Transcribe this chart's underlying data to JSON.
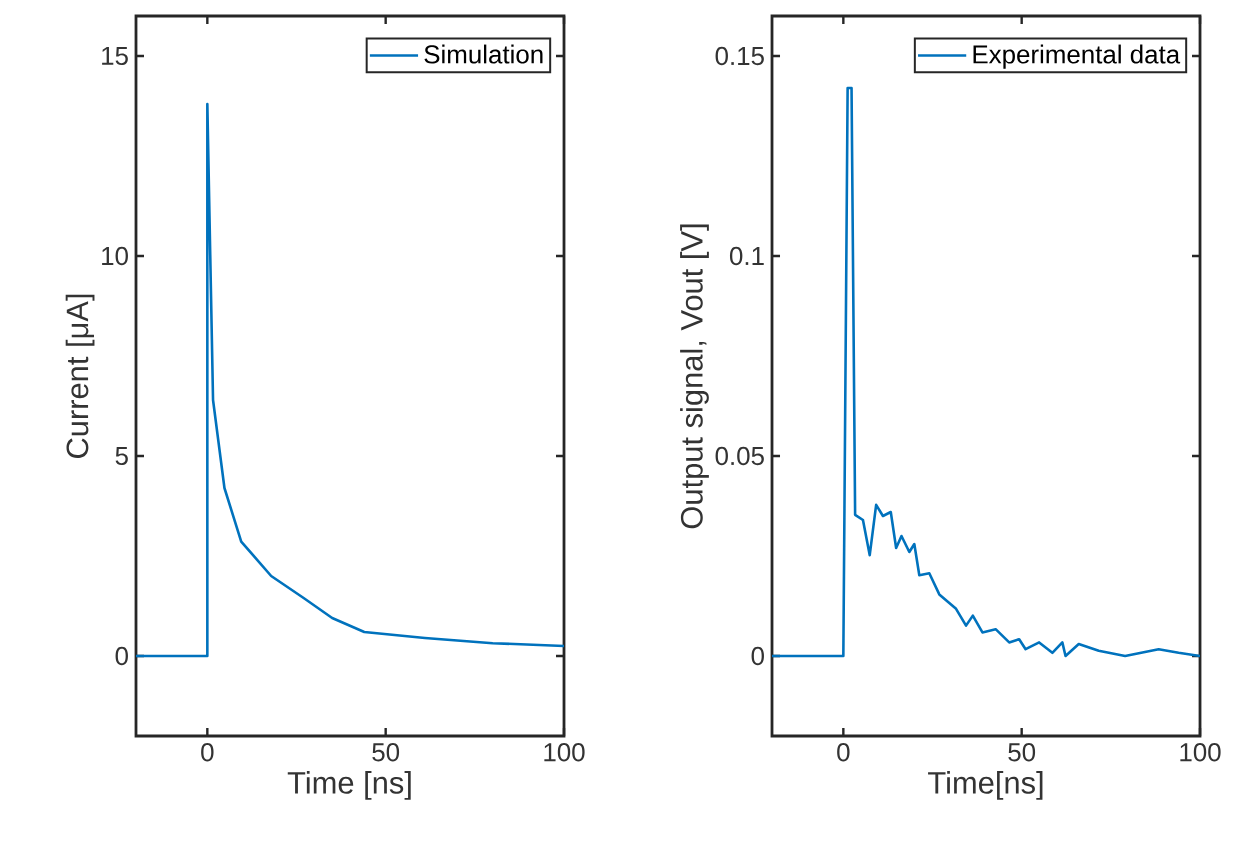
{
  "chart_data": [
    {
      "type": "line",
      "xlabel": "Time [ns]",
      "ylabel": "Current [μA]",
      "xlim": [
        -20,
        100
      ],
      "ylim": [
        -2,
        16
      ],
      "xticks": [
        0,
        50,
        100
      ],
      "yticks": [
        0,
        5,
        10,
        15
      ],
      "legend": "top right",
      "series": [
        {
          "name": "Simulation",
          "color": "#0072bd",
          "x": [
            -20,
            0,
            0,
            1.6,
            4.8,
            9.5,
            17.9,
            27,
            35,
            44,
            61,
            80,
            100
          ],
          "values": [
            0,
            0,
            13.8,
            6.4,
            4.2,
            2.86,
            2.0,
            1.45,
            0.95,
            0.6,
            0.45,
            0.32,
            0.25
          ]
        }
      ]
    },
    {
      "type": "line",
      "xlabel": "Time[ns]",
      "ylabel": "Output signal, Vout [V]",
      "xlim": [
        -20,
        100
      ],
      "ylim": [
        -0.02,
        0.16
      ],
      "xticks": [
        0,
        50,
        100
      ],
      "yticks": [
        0,
        0.05,
        0.1,
        0.15
      ],
      "legend": "top right",
      "series": [
        {
          "name": "Experimental data",
          "color": "#0072bd",
          "x": [
            -20,
            0,
            1.2,
            2.3,
            3.3,
            5.5,
            7.4,
            9.2,
            11.1,
            13.3,
            14.8,
            16.3,
            18.5,
            19.9,
            21.3,
            24.1,
            26.9,
            31.6,
            34.4,
            36.3,
            39,
            42.7,
            46.5,
            49.3,
            51.1,
            54.9,
            58.6,
            61.4,
            62.3,
            66,
            71.6,
            79,
            88.4,
            94,
            100
          ],
          "values": [
            0,
            0,
            0.142,
            0.142,
            0.0353,
            0.034,
            0.0252,
            0.0378,
            0.035,
            0.036,
            0.027,
            0.03,
            0.026,
            0.028,
            0.0202,
            0.0207,
            0.0154,
            0.0118,
            0.0076,
            0.0101,
            0.0059,
            0.0067,
            0.0034,
            0.0042,
            0.0017,
            0.0034,
            0.0008,
            0.0034,
            0,
            0.003,
            0.0013,
            0,
            0.0017,
            0.0008,
            0
          ]
        }
      ]
    }
  ]
}
